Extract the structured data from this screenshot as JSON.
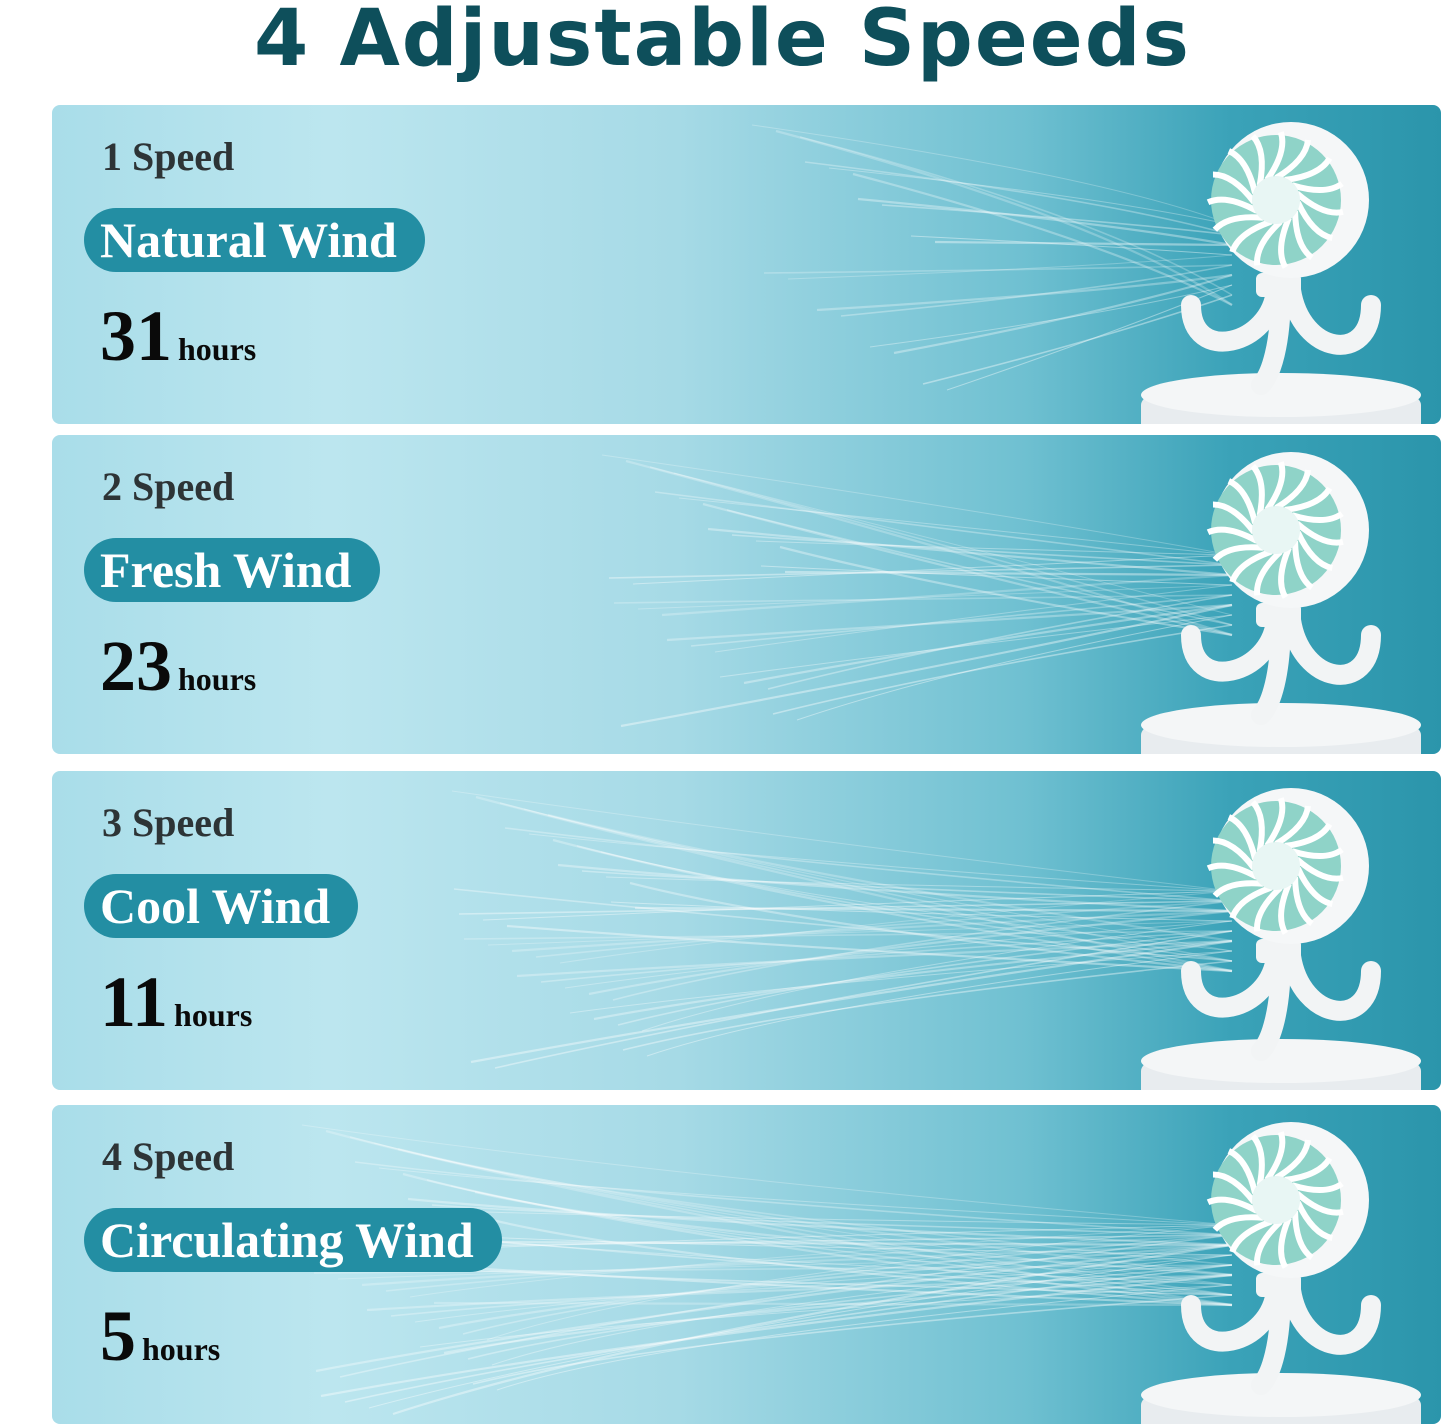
{
  "title": "4 Adjustable Speeds",
  "colors": {
    "title": "#0e4f5b",
    "pill": "#238ea3",
    "panel_light": "#bce6ef",
    "panel_dark": "#2b95ab"
  },
  "panels": [
    {
      "speed": "1 Speed",
      "mode": "Natural Wind",
      "hours": "31",
      "unit": "hours"
    },
    {
      "speed": "2 Speed",
      "mode": "Fresh Wind",
      "hours": "23",
      "unit": "hours"
    },
    {
      "speed": "3 Speed",
      "mode": "Cool Wind",
      "hours": "11",
      "unit": "hours"
    },
    {
      "speed": "4 Speed",
      "mode": "Circulating Wind",
      "hours": "5",
      "unit": "hours"
    }
  ],
  "icons": {
    "product": "tripod-fan-image",
    "wind": "wind-streaks"
  }
}
